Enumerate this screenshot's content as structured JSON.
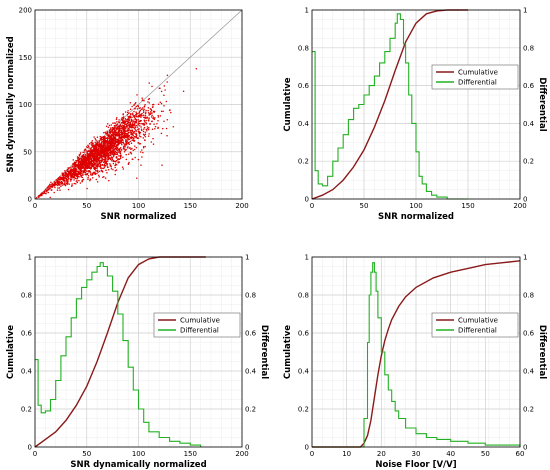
{
  "colors": {
    "cumulative": "#8b1a1a",
    "differential": "#22b022",
    "scatter": "#dd0000",
    "grid": "#d0d0d0",
    "reference": "#9a9a9a"
  },
  "chart_data": [
    {
      "type": "scatter",
      "xlabel": "SNR normalized",
      "ylabel": "SNR dynamically normalized",
      "xlim": [
        0,
        200
      ],
      "ylim": [
        0,
        200
      ],
      "xticks": [
        0,
        50,
        100,
        150,
        200
      ],
      "yticks": [
        0,
        50,
        100,
        150,
        200
      ],
      "reference_line": "y = x",
      "grid": true,
      "points_description_free": true,
      "density_center": [
        65,
        60
      ],
      "envelope": [
        [
          0,
          0
        ],
        [
          40,
          42
        ],
        [
          80,
          85
        ],
        [
          100,
          100
        ],
        [
          120,
          110
        ],
        [
          150,
          150
        ],
        [
          170,
          180
        ]
      ],
      "series": [
        {
          "values": []
        }
      ]
    },
    {
      "type": "line",
      "xlabel": "SNR normalized",
      "ylabel": "Cumulative",
      "y2label": "Differential",
      "xlim": [
        0,
        200
      ],
      "ylim": [
        0,
        1
      ],
      "y2lim": [
        0,
        1
      ],
      "xticks": [
        0,
        50,
        100,
        150,
        200
      ],
      "yticks": [
        0,
        0.2,
        0.4,
        0.6,
        0.8,
        1
      ],
      "legend": "top-right",
      "grid": true,
      "series": [
        {
          "name": "Cumulative",
          "axis": "left",
          "x": [
            0,
            10,
            20,
            30,
            40,
            50,
            60,
            70,
            80,
            90,
            100,
            110,
            120,
            130,
            150
          ],
          "values": [
            0,
            0.02,
            0.05,
            0.1,
            0.17,
            0.26,
            0.38,
            0.52,
            0.68,
            0.83,
            0.93,
            0.98,
            0.995,
            1.0,
            1.0
          ]
        },
        {
          "name": "Differential",
          "axis": "right",
          "x": [
            0,
            3,
            6,
            10,
            15,
            20,
            25,
            30,
            35,
            40,
            45,
            50,
            55,
            60,
            65,
            70,
            75,
            80,
            82,
            85,
            88,
            90,
            93,
            96,
            100,
            103,
            106,
            110,
            115,
            120,
            130,
            150
          ],
          "values": [
            0.78,
            0.15,
            0.08,
            0.07,
            0.12,
            0.2,
            0.27,
            0.34,
            0.42,
            0.48,
            0.5,
            0.55,
            0.6,
            0.65,
            0.72,
            0.78,
            0.85,
            0.93,
            0.98,
            0.95,
            0.82,
            0.72,
            0.55,
            0.4,
            0.25,
            0.12,
            0.08,
            0.04,
            0.02,
            0.01,
            0.0,
            0.0
          ]
        }
      ]
    },
    {
      "type": "line",
      "xlabel": "SNR dynamically normalized",
      "ylabel": "Cumulative",
      "y2label": "Differential",
      "xlim": [
        0,
        200
      ],
      "ylim": [
        0,
        1
      ],
      "y2lim": [
        0,
        1
      ],
      "xticks": [
        0,
        50,
        100,
        150,
        200
      ],
      "yticks": [
        0,
        0.2,
        0.4,
        0.6,
        0.8,
        1
      ],
      "legend": "right",
      "grid": true,
      "series": [
        {
          "name": "Cumulative",
          "axis": "left",
          "x": [
            0,
            10,
            20,
            30,
            40,
            50,
            60,
            70,
            80,
            90,
            100,
            110,
            120,
            140,
            165
          ],
          "values": [
            0,
            0.04,
            0.08,
            0.14,
            0.22,
            0.32,
            0.45,
            0.6,
            0.76,
            0.89,
            0.96,
            0.99,
            1.0,
            1.0,
            1.0
          ]
        },
        {
          "name": "Differential",
          "axis": "right",
          "x": [
            0,
            3,
            6,
            10,
            15,
            20,
            25,
            30,
            35,
            40,
            45,
            50,
            55,
            60,
            63,
            66,
            70,
            75,
            80,
            85,
            90,
            95,
            100,
            105,
            110,
            120,
            130,
            140,
            150,
            160
          ],
          "values": [
            0.46,
            0.22,
            0.18,
            0.19,
            0.25,
            0.35,
            0.48,
            0.58,
            0.68,
            0.78,
            0.84,
            0.88,
            0.92,
            0.95,
            0.97,
            0.95,
            0.9,
            0.82,
            0.7,
            0.56,
            0.42,
            0.3,
            0.2,
            0.13,
            0.08,
            0.05,
            0.03,
            0.02,
            0.01,
            0.0
          ]
        }
      ]
    },
    {
      "type": "line",
      "xlabel": "Noise Floor [V/V]",
      "ylabel": "Cumulative",
      "y2label": "Differential",
      "xlim": [
        0,
        60
      ],
      "ylim": [
        0,
        1
      ],
      "y2lim": [
        0,
        1
      ],
      "xticks": [
        0,
        10,
        20,
        30,
        40,
        50,
        60
      ],
      "yticks": [
        0,
        0.2,
        0.4,
        0.6,
        0.8,
        1
      ],
      "legend": "right",
      "grid": true,
      "series": [
        {
          "name": "Cumulative",
          "axis": "left",
          "x": [
            0,
            14,
            15,
            16,
            17,
            18,
            19,
            20,
            21,
            22,
            23,
            25,
            27,
            30,
            35,
            40,
            45,
            50,
            55,
            60
          ],
          "values": [
            0,
            0.0,
            0.02,
            0.06,
            0.14,
            0.26,
            0.38,
            0.48,
            0.56,
            0.62,
            0.67,
            0.74,
            0.79,
            0.84,
            0.89,
            0.92,
            0.94,
            0.96,
            0.97,
            0.98
          ]
        },
        {
          "name": "Differential",
          "axis": "right",
          "x": [
            0,
            14,
            15,
            16,
            16.5,
            17,
            17.5,
            18,
            18.5,
            19,
            20,
            21,
            22,
            23,
            24,
            25,
            27,
            30,
            33,
            36,
            40,
            45,
            50,
            55,
            60
          ],
          "values": [
            0,
            0.0,
            0.15,
            0.55,
            0.8,
            0.92,
            0.97,
            0.92,
            0.82,
            0.68,
            0.5,
            0.38,
            0.3,
            0.24,
            0.19,
            0.15,
            0.1,
            0.07,
            0.05,
            0.04,
            0.03,
            0.02,
            0.01,
            0.01,
            0.0
          ]
        }
      ]
    }
  ]
}
